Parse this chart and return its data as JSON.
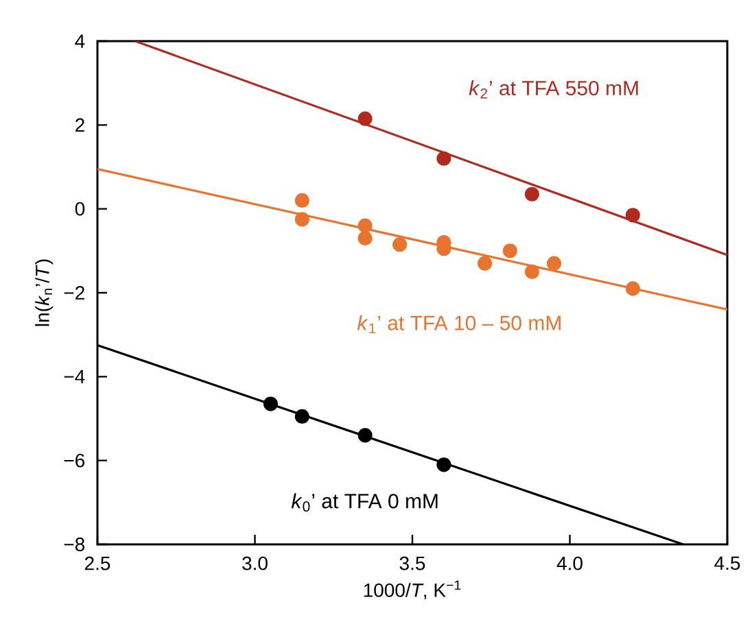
{
  "chart_data": {
    "type": "scatter",
    "xlabel": "1000/*T*, K$^{−1}$",
    "ylabel": "ln(*k*$_{n}$’/*T*)",
    "marker": "circle",
    "xlim": [
      2.5,
      4.5
    ],
    "ylim": [
      -8,
      4
    ],
    "xticks": [
      2.5,
      {
        "value": 3,
        "label": "3.0"
      },
      3.5,
      {
        "value": 4,
        "label": "4.0"
      },
      4.5
    ],
    "yticks": [
      {
        "value": -8,
        "label": "−8"
      },
      {
        "value": -6,
        "label": "−6"
      },
      {
        "value": -4,
        "label": "−4"
      },
      {
        "value": -2,
        "label": "−2"
      },
      0,
      2,
      4
    ],
    "series": [
      {
        "name": "*k*$_{2}$’ at TFA 550 mM",
        "color": "#b22a1e",
        "x": [
          3.35,
          3.6,
          3.88,
          4.2
        ],
        "values": [
          2.15,
          1.2,
          0.35,
          -0.15
        ]
      },
      {
        "name": "*k*$_{1}$’ at TFA 10 – 50 mM",
        "color": "#e8742e",
        "x": [
          3.15,
          3.15,
          3.35,
          3.35,
          3.46,
          3.6,
          3.6,
          3.73,
          3.81,
          3.88,
          3.95,
          4.2
        ],
        "values": [
          0.2,
          -0.25,
          -0.4,
          -0.7,
          -0.85,
          -0.8,
          -0.95,
          -1.3,
          -1.0,
          -1.5,
          -1.3,
          -1.9
        ]
      },
      {
        "name": "*k*$_{0}$’ at TFA 0 mM",
        "color": "#000000",
        "x": [
          3.05,
          3.15,
          3.35,
          3.6
        ],
        "values": [
          -4.65,
          -4.95,
          -5.4,
          -6.1
        ]
      },
      {
        "type": "line",
        "color": "#b22a1e",
        "marker": "none",
        "x": [
          2.62,
          4.5
        ],
        "values": [
          4,
          -1.1
        ]
      },
      {
        "type": "line",
        "color": "#e8742e",
        "marker": "none",
        "x": [
          2.5,
          4.5
        ],
        "values": [
          0.95,
          -2.4
        ]
      },
      {
        "type": "line",
        "color": "#000000",
        "marker": "none",
        "x": [
          2.5,
          4.36
        ],
        "values": [
          -3.25,
          -8
        ]
      }
    ]
  }
}
